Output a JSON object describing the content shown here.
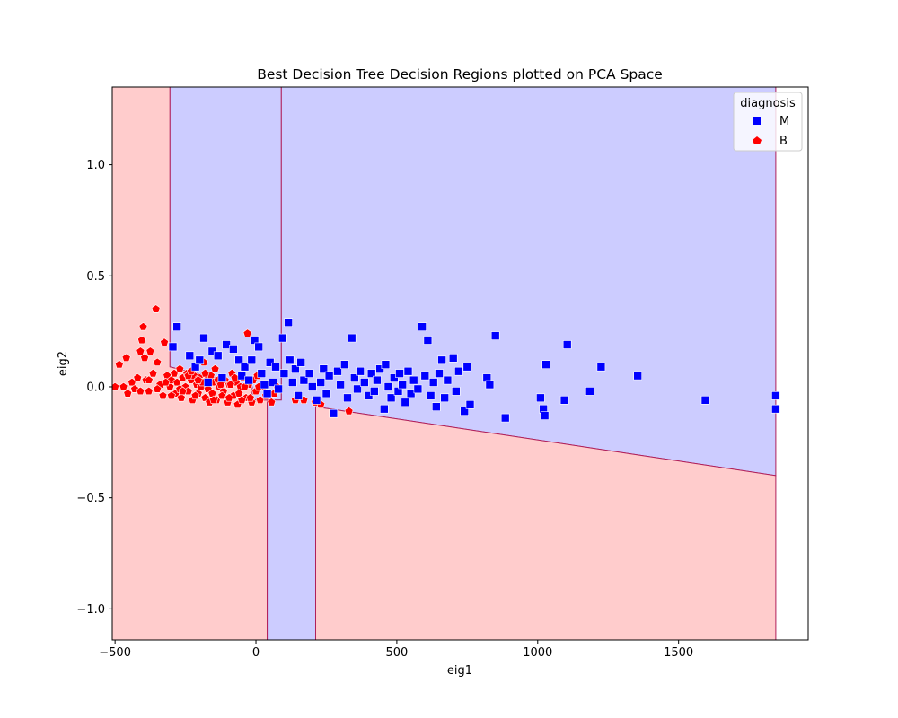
{
  "chart_data": {
    "type": "scatter",
    "title": "Best Decision Tree Decision Regions plotted on PCA Space",
    "xlabel": "eig1",
    "ylabel": "eig2",
    "xlim": [
      -510,
      1960
    ],
    "ylim": [
      -1.14,
      1.35
    ],
    "x_ticks": [
      -500,
      0,
      500,
      1000,
      1500
    ],
    "y_ticks": [
      -1.0,
      -0.5,
      0.0,
      0.5,
      1.0
    ],
    "x_tick_labels": [
      "−500",
      "0",
      "500",
      "1000",
      "1500"
    ],
    "y_tick_labels": [
      "−1.0",
      "−0.5",
      "0.0",
      "0.5",
      "1.0"
    ],
    "grid": false,
    "legend": {
      "title": "diagnosis",
      "placement": "top-right",
      "entries": [
        {
          "label": "M",
          "color": "#0000ff",
          "marker": "square"
        },
        {
          "label": "B",
          "color": "#ff0000",
          "marker": "pentagon"
        }
      ]
    },
    "region_colors": {
      "M": "#ccccff",
      "B": "#ffcccc",
      "boundary": "#b0205a"
    },
    "regions": [
      {
        "class": "B",
        "polygon": [
          [
            -510,
            -1.14
          ],
          [
            -510,
            1.35
          ],
          [
            -305,
            1.35
          ],
          [
            -305,
            0.09
          ],
          [
            -13,
            0.0
          ],
          [
            -13,
            -0.06
          ],
          [
            40,
            -0.06
          ],
          [
            40,
            -1.14
          ]
        ]
      },
      {
        "class": "M",
        "polygon": [
          [
            -305,
            0.09
          ],
          [
            -305,
            1.35
          ],
          [
            90,
            1.35
          ],
          [
            90,
            -0.06
          ],
          [
            -13,
            -0.06
          ],
          [
            -13,
            0.0
          ]
        ]
      },
      {
        "class": "M",
        "polygon": [
          [
            90,
            -0.06
          ],
          [
            90,
            1.35
          ],
          [
            1845,
            1.35
          ],
          [
            1845,
            -0.4
          ],
          [
            212,
            -0.09
          ],
          [
            212,
            -1.14
          ],
          [
            40,
            -1.14
          ],
          [
            40,
            -0.06
          ]
        ]
      },
      {
        "class": "B",
        "polygon": [
          [
            212,
            -1.14
          ],
          [
            212,
            -0.09
          ],
          [
            1845,
            -0.4
          ],
          [
            1845,
            -1.14
          ]
        ]
      }
    ],
    "series": [
      {
        "name": "M",
        "color": "#0000ff",
        "marker": "square",
        "points": [
          [
            -280,
            0.27
          ],
          [
            -185,
            0.22
          ],
          [
            -155,
            0.16
          ],
          [
            -295,
            0.18
          ],
          [
            -235,
            0.14
          ],
          [
            -215,
            0.09
          ],
          [
            -200,
            0.12
          ],
          [
            -170,
            0.02
          ],
          [
            -135,
            0.14
          ],
          [
            -120,
            0.04
          ],
          [
            -105,
            0.19
          ],
          [
            -80,
            0.17
          ],
          [
            -60,
            0.12
          ],
          [
            -50,
            0.05
          ],
          [
            -40,
            0.09
          ],
          [
            -25,
            0.03
          ],
          [
            -5,
            0.21
          ],
          [
            -15,
            0.12
          ],
          [
            10,
            0.18
          ],
          [
            20,
            0.06
          ],
          [
            30,
            0.01
          ],
          [
            40,
            -0.03
          ],
          [
            50,
            0.11
          ],
          [
            60,
            0.02
          ],
          [
            70,
            0.09
          ],
          [
            80,
            -0.01
          ],
          [
            95,
            0.22
          ],
          [
            100,
            0.06
          ],
          [
            115,
            0.29
          ],
          [
            120,
            0.12
          ],
          [
            130,
            0.02
          ],
          [
            140,
            0.08
          ],
          [
            150,
            -0.04
          ],
          [
            160,
            0.11
          ],
          [
            170,
            0.03
          ],
          [
            190,
            0.06
          ],
          [
            200,
            0.0
          ],
          [
            215,
            -0.06
          ],
          [
            230,
            0.02
          ],
          [
            240,
            0.08
          ],
          [
            250,
            -0.03
          ],
          [
            260,
            0.05
          ],
          [
            275,
            -0.12
          ],
          [
            290,
            0.07
          ],
          [
            300,
            0.01
          ],
          [
            315,
            0.1
          ],
          [
            325,
            -0.05
          ],
          [
            340,
            0.22
          ],
          [
            350,
            0.04
          ],
          [
            360,
            -0.01
          ],
          [
            370,
            0.07
          ],
          [
            385,
            0.02
          ],
          [
            400,
            -0.04
          ],
          [
            410,
            0.06
          ],
          [
            420,
            -0.02
          ],
          [
            430,
            0.03
          ],
          [
            440,
            0.08
          ],
          [
            455,
            -0.1
          ],
          [
            460,
            0.1
          ],
          [
            470,
            0.0
          ],
          [
            480,
            -0.05
          ],
          [
            490,
            0.04
          ],
          [
            505,
            -0.02
          ],
          [
            510,
            0.06
          ],
          [
            520,
            0.01
          ],
          [
            530,
            -0.07
          ],
          [
            540,
            0.07
          ],
          [
            550,
            -0.03
          ],
          [
            560,
            0.03
          ],
          [
            575,
            -0.01
          ],
          [
            590,
            0.27
          ],
          [
            600,
            0.05
          ],
          [
            610,
            0.21
          ],
          [
            620,
            -0.04
          ],
          [
            630,
            0.02
          ],
          [
            640,
            -0.09
          ],
          [
            650,
            0.06
          ],
          [
            660,
            0.12
          ],
          [
            670,
            -0.05
          ],
          [
            680,
            0.03
          ],
          [
            700,
            0.13
          ],
          [
            710,
            -0.02
          ],
          [
            720,
            0.07
          ],
          [
            740,
            -0.11
          ],
          [
            750,
            0.09
          ],
          [
            760,
            -0.08
          ],
          [
            820,
            0.04
          ],
          [
            830,
            0.01
          ],
          [
            850,
            0.23
          ],
          [
            885,
            -0.14
          ],
          [
            1010,
            -0.05
          ],
          [
            1020,
            -0.1
          ],
          [
            1025,
            -0.13
          ],
          [
            1030,
            0.1
          ],
          [
            1095,
            -0.06
          ],
          [
            1105,
            0.19
          ],
          [
            1185,
            -0.02
          ],
          [
            1225,
            0.09
          ],
          [
            1355,
            0.05
          ],
          [
            1595,
            -0.06
          ],
          [
            1845,
            -0.04
          ],
          [
            1845,
            -0.1
          ]
        ]
      },
      {
        "name": "B",
        "color": "#ff0000",
        "marker": "pentagon",
        "points": [
          [
            -500,
            0.0
          ],
          [
            -485,
            0.1
          ],
          [
            -470,
            0.0
          ],
          [
            -460,
            0.13
          ],
          [
            -455,
            -0.03
          ],
          [
            -440,
            0.02
          ],
          [
            -430,
            -0.01
          ],
          [
            -420,
            0.04
          ],
          [
            -410,
            0.16
          ],
          [
            -405,
            0.21
          ],
          [
            -400,
            0.27
          ],
          [
            -395,
            0.13
          ],
          [
            -390,
            0.03
          ],
          [
            -380,
            -0.02
          ],
          [
            -375,
            0.16
          ],
          [
            -365,
            0.06
          ],
          [
            -355,
            0.35
          ],
          [
            -350,
            0.11
          ],
          [
            -340,
            0.01
          ],
          [
            -330,
            -0.04
          ],
          [
            -325,
            0.2
          ],
          [
            -315,
            0.05
          ],
          [
            -305,
            0.0
          ],
          [
            -300,
            0.03
          ],
          [
            -290,
            0.06
          ],
          [
            -285,
            -0.03
          ],
          [
            -280,
            0.02
          ],
          [
            -270,
            0.08
          ],
          [
            -265,
            -0.05
          ],
          [
            -260,
            0.04
          ],
          [
            -250,
            0.0
          ],
          [
            -245,
            0.06
          ],
          [
            -240,
            -0.02
          ],
          [
            -230,
            0.03
          ],
          [
            -225,
            -0.06
          ],
          [
            -220,
            0.05
          ],
          [
            -210,
            0.01
          ],
          [
            -205,
            -0.03
          ],
          [
            -200,
            0.04
          ],
          [
            -195,
            0.0
          ],
          [
            -185,
            0.11
          ],
          [
            -180,
            -0.05
          ],
          [
            -175,
            0.03
          ],
          [
            -170,
            -0.01
          ],
          [
            -160,
            0.05
          ],
          [
            -155,
            -0.03
          ],
          [
            -150,
            0.02
          ],
          [
            -145,
            0.08
          ],
          [
            -140,
            -0.06
          ],
          [
            -130,
            0.0
          ],
          [
            -125,
            0.04
          ],
          [
            -115,
            -0.02
          ],
          [
            -110,
            0.03
          ],
          [
            -100,
            -0.07
          ],
          [
            -95,
            0.01
          ],
          [
            -85,
            0.06
          ],
          [
            -80,
            -0.04
          ],
          [
            -70,
            0.02
          ],
          [
            -65,
            -0.08
          ],
          [
            -55,
            0.0
          ],
          [
            -45,
            0.04
          ],
          [
            -35,
            -0.05
          ],
          [
            -30,
            0.24
          ],
          [
            -25,
            0.01
          ],
          [
            -15,
            -0.07
          ],
          [
            -10,
            0.03
          ],
          [
            0,
            -0.02
          ],
          [
            5,
            0.05
          ],
          [
            15,
            -0.06
          ],
          [
            25,
            0.0
          ],
          [
            35,
            -0.04
          ],
          [
            55,
            -0.07
          ],
          [
            65,
            -0.03
          ],
          [
            75,
            0.0
          ],
          [
            140,
            -0.06
          ],
          [
            170,
            -0.06
          ],
          [
            210,
            -0.07
          ],
          [
            230,
            -0.08
          ],
          [
            330,
            -0.11
          ],
          [
            -410,
            -0.02
          ],
          [
            -380,
            0.03
          ],
          [
            -350,
            -0.01
          ],
          [
            -320,
            0.02
          ],
          [
            -300,
            -0.04
          ],
          [
            -270,
            -0.01
          ],
          [
            -240,
            0.05
          ],
          [
            -215,
            -0.04
          ],
          [
            -190,
            0.02
          ],
          [
            -165,
            -0.07
          ],
          [
            -135,
            0.03
          ],
          [
            -120,
            -0.04
          ],
          [
            -90,
            0.01
          ],
          [
            -60,
            -0.03
          ],
          [
            -40,
            0.0
          ],
          [
            -20,
            -0.05
          ],
          [
            10,
            0.0
          ],
          [
            -260,
            -0.02
          ],
          [
            -230,
            0.07
          ],
          [
            -205,
            0.03
          ],
          [
            -180,
            0.06
          ],
          [
            -150,
            -0.06
          ],
          [
            -125,
            0.01
          ],
          [
            -95,
            -0.05
          ],
          [
            -75,
            0.04
          ],
          [
            -50,
            -0.06
          ]
        ]
      }
    ]
  }
}
